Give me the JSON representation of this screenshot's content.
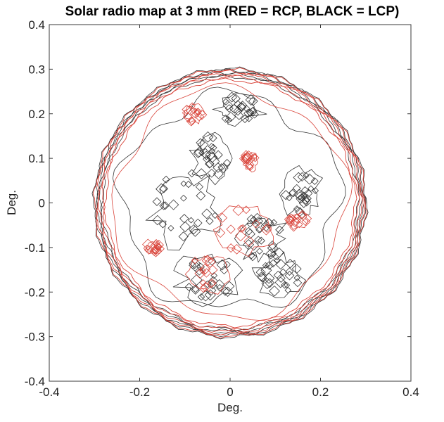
{
  "chart_data": {
    "type": "contour",
    "title": "Solar radio map at 3 mm (RED = RCP, BLACK = LCP)",
    "xlabel": "Deg.",
    "ylabel": "Deg.",
    "xlim": [
      -0.4,
      0.4
    ],
    "ylim": [
      -0.4,
      0.4
    ],
    "xticks": [
      -0.4,
      -0.2,
      0,
      0.2,
      0.4
    ],
    "yticks": [
      -0.4,
      -0.3,
      -0.2,
      -0.1,
      0,
      0.1,
      0.2,
      0.3,
      0.4
    ],
    "xtick_labels": [
      "-0.4",
      "-0.2",
      "0",
      "0.2",
      "0.4"
    ],
    "ytick_labels": [
      "-0.4",
      "-0.3",
      "-0.2",
      "-0.1",
      "0",
      "0.1",
      "0.2",
      "0.3",
      "0.4"
    ],
    "grid": false,
    "colors": {
      "rcp": "#d9443a",
      "lcp": "#333333"
    },
    "series": [
      {
        "name": "RCP",
        "limb_radii": [
          0.276,
          0.282,
          0.289,
          0.294,
          0.299
        ],
        "regions": [
          {
            "cx": 0.045,
            "cy": 0.092,
            "rx": 0.015,
            "ry": 0.02
          },
          {
            "cx": 0.03,
            "cy": -0.06,
            "rx": 0.065,
            "ry": 0.05
          },
          {
            "cx": -0.05,
            "cy": -0.16,
            "rx": 0.045,
            "ry": 0.04
          },
          {
            "cx": -0.17,
            "cy": -0.1,
            "rx": 0.015,
            "ry": 0.012
          },
          {
            "cx": 0.15,
            "cy": -0.04,
            "rx": 0.02,
            "ry": 0.018
          },
          {
            "cx": -0.08,
            "cy": 0.2,
            "rx": 0.02,
            "ry": 0.02
          }
        ]
      },
      {
        "name": "LCP",
        "limb_radii": [
          0.283,
          0.288,
          0.293,
          0.297,
          0.301
        ],
        "regions": [
          {
            "cx": -0.1,
            "cy": -0.01,
            "rx": 0.07,
            "ry": 0.08
          },
          {
            "cx": 0.07,
            "cy": -0.08,
            "rx": 0.05,
            "ry": 0.05
          },
          {
            "cx": -0.05,
            "cy": -0.17,
            "rx": 0.06,
            "ry": 0.05
          },
          {
            "cx": 0.16,
            "cy": 0.02,
            "rx": 0.04,
            "ry": 0.05
          },
          {
            "cx": 0.02,
            "cy": 0.21,
            "rx": 0.05,
            "ry": 0.03
          },
          {
            "cx": 0.11,
            "cy": -0.16,
            "rx": 0.05,
            "ry": 0.04
          },
          {
            "cx": -0.04,
            "cy": 0.1,
            "rx": 0.04,
            "ry": 0.05
          }
        ]
      }
    ]
  }
}
